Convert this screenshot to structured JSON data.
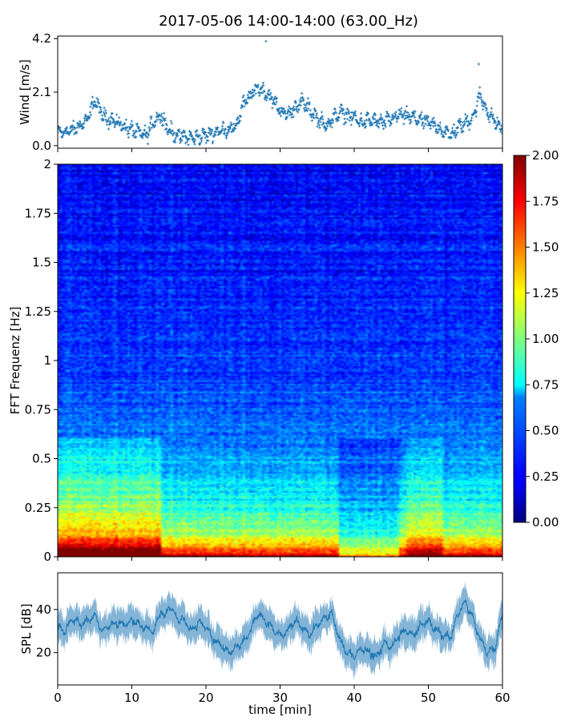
{
  "figure": {
    "title": "2017-05-06 14:00-14:00 (63.00_Hz)"
  },
  "chart_data": [
    {
      "type": "scatter",
      "panel": "wind",
      "ylabel": "Wind [m/s]",
      "xlim": [
        0,
        60
      ],
      "ylim": [
        -0.1,
        4.3
      ],
      "yticks": [
        0.0,
        2.1,
        4.2
      ],
      "ytick_labels": [
        "0.0",
        "2.1",
        "4.2"
      ],
      "color": "#1f77b4",
      "profile": {
        "x": [
          0,
          2,
          4,
          5,
          6,
          8,
          10,
          12,
          13,
          14,
          15,
          16,
          18,
          20,
          22,
          24,
          25,
          27,
          28,
          29,
          30,
          31,
          32,
          33,
          34,
          35,
          36,
          37,
          38,
          40,
          41,
          42,
          44,
          46,
          48,
          50,
          52,
          53,
          54,
          56,
          57,
          58,
          60
        ],
        "y": [
          0.5,
          0.6,
          1.0,
          1.8,
          1.2,
          0.9,
          0.6,
          0.4,
          1.0,
          1.2,
          0.6,
          0.4,
          0.3,
          0.4,
          0.6,
          0.7,
          1.6,
          2.3,
          2.1,
          1.8,
          1.4,
          1.2,
          1.5,
          1.7,
          1.4,
          1.1,
          0.8,
          1.0,
          1.3,
          1.1,
          0.9,
          1.0,
          0.9,
          1.2,
          1.1,
          0.9,
          0.6,
          0.4,
          0.7,
          1.1,
          2.0,
          1.3,
          0.6
        ]
      },
      "peaks": [
        {
          "x": 28.1,
          "y": 4.1
        },
        {
          "x": 56.8,
          "y": 3.2
        }
      ]
    },
    {
      "type": "heatmap",
      "panel": "spectrogram",
      "ylabel": "FFT Frequenz [Hz]",
      "xlim": [
        0,
        60
      ],
      "ylim": [
        0,
        2
      ],
      "yticks": [
        0,
        0.25,
        0.5,
        0.75,
        1,
        1.25,
        1.5,
        1.75,
        2
      ],
      "ytick_labels": [
        "0",
        "0.25",
        "0.5",
        "0.75",
        "1",
        "1.25",
        "1.5",
        "1.75",
        "2"
      ],
      "colormap": "jet",
      "colorbar": {
        "min": 0.0,
        "max": 2.0,
        "ticks": [
          "0.00",
          "0.25",
          "0.50",
          "0.75",
          "1.00",
          "1.25",
          "1.50",
          "1.75",
          "2.00"
        ]
      },
      "intensity_by_frequency": {
        "f": [
          0,
          0.03,
          0.1,
          0.2,
          0.3,
          0.45,
          0.6,
          0.8,
          1.0,
          1.5,
          2.0
        ],
        "level": [
          1.9,
          1.6,
          1.1,
          0.9,
          0.75,
          0.62,
          0.5,
          0.42,
          0.35,
          0.3,
          0.25
        ]
      }
    },
    {
      "type": "line",
      "panel": "spl",
      "ylabel": "SPL [dB]",
      "xlabel": "time [min]",
      "xlim": [
        0,
        60
      ],
      "ylim": [
        5,
        57
      ],
      "yticks": [
        20,
        40
      ],
      "ytick_labels": [
        "20",
        "40"
      ],
      "xticks": [
        0,
        10,
        20,
        30,
        40,
        50,
        60
      ],
      "xtick_labels": [
        "0",
        "10",
        "20",
        "30",
        "40",
        "50",
        "60"
      ],
      "color": "#1f77b4",
      "x": [
        0,
        1,
        2,
        3,
        4,
        5,
        6,
        7,
        8,
        9,
        10,
        11,
        12,
        13,
        14,
        14.5,
        15,
        16,
        17,
        18,
        19,
        20,
        21,
        22,
        23,
        24,
        25,
        26,
        27,
        28,
        29,
        30,
        31,
        32,
        33,
        34,
        35,
        36,
        37,
        38,
        39,
        40,
        41,
        42,
        43,
        44,
        45,
        46,
        47,
        48,
        49,
        50,
        51,
        52,
        53,
        54,
        55,
        56,
        57,
        58,
        59,
        60
      ],
      "y": [
        32,
        30,
        36,
        33,
        35,
        37,
        30,
        33,
        34,
        33,
        35,
        33,
        31,
        30,
        40,
        36,
        42,
        36,
        35,
        30,
        34,
        32,
        26,
        24,
        20,
        22,
        25,
        30,
        38,
        35,
        31,
        28,
        30,
        35,
        32,
        28,
        33,
        36,
        38,
        26,
        20,
        18,
        22,
        20,
        18,
        24,
        22,
        28,
        30,
        28,
        33,
        35,
        30,
        28,
        27,
        38,
        44,
        36,
        26,
        20,
        22,
        38
      ]
    }
  ]
}
